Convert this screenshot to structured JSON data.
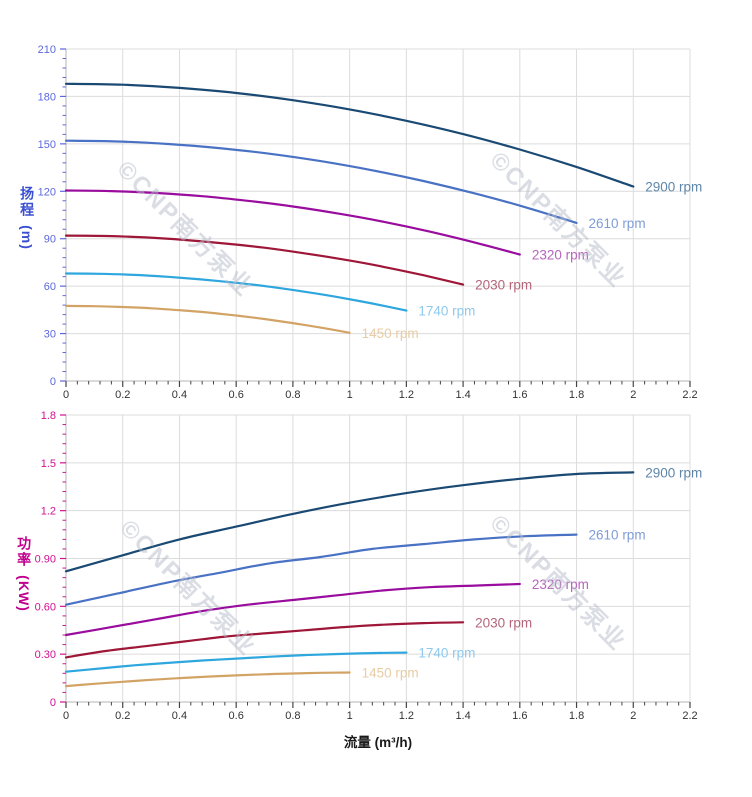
{
  "watermark": {
    "text": "©CNP南方泵业"
  },
  "axes": {
    "flow_label": "流量 (m³/h)",
    "head_title_cn": "扬程",
    "head_unit": "(m)",
    "power_title_cn": "功率",
    "power_unit": "(KW)"
  },
  "colors": {
    "grid": "#dcdcdc",
    "axis_line": "#b5b5b5",
    "x_tick": "#444444",
    "x_tick_label": "#333333",
    "head_tick": "#5c68dd",
    "head_tick_label": "#5c68dd",
    "power_tick": "#d01195",
    "power_tick_label": "#d01195"
  },
  "x_axis": {
    "min": 0,
    "max": 2.2,
    "tick_values": [
      0,
      0.2,
      0.4,
      0.6,
      0.8,
      1,
      1.2,
      1.4,
      1.6,
      1.8,
      2,
      2.2
    ],
    "tick_labels": [
      "0",
      "0.2",
      "0.4",
      "0.6",
      "0.8",
      "1",
      "1.2",
      "1.4",
      "1.6",
      "1.8",
      "2",
      "2.2"
    ],
    "minor_step": 0.04,
    "label": "流量 (m³/h)"
  },
  "chart_data": [
    {
      "type": "line",
      "id": "head",
      "ylabel": "扬程 (m)",
      "ylim": [
        0,
        210
      ],
      "y_tick_values": [
        0,
        30,
        60,
        90,
        120,
        150,
        180,
        210
      ],
      "y_tick_labels": [
        "0",
        "30",
        "60",
        "90",
        "120",
        "150",
        "180",
        "210"
      ],
      "y_minor_step": 6,
      "grid": true,
      "legend_position": "at-line-end",
      "series": [
        {
          "name": "2900 rpm",
          "color": "#1a4a73",
          "label_color": "#5d86a8",
          "x": [
            0,
            0.2,
            0.4,
            0.6,
            0.8,
            1.0,
            1.2,
            1.4,
            1.6,
            1.8,
            2.0
          ],
          "y": [
            188,
            187.4,
            185.4,
            182.2,
            177.6,
            171.8,
            164.6,
            156.2,
            146.4,
            135.4,
            123
          ]
        },
        {
          "name": "2610 rpm",
          "color": "#4a72c4",
          "label_color": "#7f9cd6",
          "x": [
            0,
            0.18,
            0.36,
            0.54,
            0.72,
            0.9,
            1.08,
            1.26,
            1.44,
            1.62,
            1.8
          ],
          "y": [
            152,
            151.5,
            149.9,
            147.3,
            143.7,
            139,
            133.3,
            126.5,
            118.7,
            109.9,
            100
          ]
        },
        {
          "name": "2320 rpm",
          "color": "#990c9e",
          "label_color": "#b765bd",
          "x": [
            0,
            0.16,
            0.32,
            0.48,
            0.64,
            0.8,
            0.96,
            1.12,
            1.28,
            1.44,
            1.6
          ],
          "y": [
            120.5,
            120.1,
            118.9,
            116.9,
            114,
            110.4,
            105.9,
            100.7,
            94.6,
            87.7,
            80
          ]
        },
        {
          "name": "2030 rpm",
          "color": "#9e1638",
          "label_color": "#b56579",
          "x": [
            0,
            0.14,
            0.28,
            0.42,
            0.56,
            0.7,
            0.84,
            0.98,
            1.12,
            1.26,
            1.4
          ],
          "y": [
            92,
            91.7,
            90.8,
            89.2,
            87,
            84.3,
            80.8,
            76.8,
            72.2,
            66.9,
            61
          ]
        },
        {
          "name": "1740 rpm",
          "color": "#2ea6de",
          "label_color": "#8ec9ec",
          "x": [
            0,
            0.12,
            0.24,
            0.36,
            0.48,
            0.6,
            0.72,
            0.84,
            0.96,
            1.08,
            1.2
          ],
          "y": [
            68,
            67.8,
            67.1,
            65.9,
            64.2,
            62.1,
            59.6,
            56.5,
            53,
            49,
            44.5
          ]
        },
        {
          "name": "1450 rpm",
          "color": "#d2a365",
          "label_color": "#e8cca4",
          "x": [
            0,
            0.1,
            0.2,
            0.3,
            0.4,
            0.5,
            0.6,
            0.7,
            0.8,
            0.9,
            1.0
          ],
          "y": [
            47.5,
            47.3,
            46.8,
            46,
            44.8,
            43.3,
            41.4,
            39.2,
            36.6,
            33.7,
            30.5
          ]
        }
      ]
    },
    {
      "type": "line",
      "id": "power",
      "ylabel": "功率 (KW)",
      "xlabel": "流量 (m³/h)",
      "ylim": [
        0,
        1.8
      ],
      "y_tick_values": [
        0,
        0.3,
        0.6,
        0.9,
        1.2,
        1.5,
        1.8
      ],
      "y_tick_labels": [
        "0",
        "0.30",
        "0.60",
        "0.90",
        "1.2",
        "1.5",
        "1.8"
      ],
      "y_minor_step": 0.06,
      "grid": true,
      "legend_position": "at-line-end",
      "series": [
        {
          "name": "2900 rpm",
          "color": "#1a4a73",
          "label_color": "#5d86a8",
          "x": [
            0,
            0.2,
            0.4,
            0.6,
            0.8,
            1.0,
            1.2,
            1.4,
            1.6,
            1.8,
            2.0
          ],
          "y": [
            0.82,
            0.92,
            1.02,
            1.1,
            1.18,
            1.25,
            1.31,
            1.36,
            1.4,
            1.43,
            1.44
          ]
        },
        {
          "name": "2610 rpm",
          "color": "#4a72c4",
          "label_color": "#7f9cd6",
          "x": [
            0,
            0.18,
            0.36,
            0.54,
            0.72,
            0.9,
            1.08,
            1.26,
            1.44,
            1.62,
            1.8
          ],
          "y": [
            0.61,
            0.68,
            0.75,
            0.81,
            0.87,
            0.91,
            0.96,
            0.99,
            1.02,
            1.04,
            1.05
          ]
        },
        {
          "name": "2320 rpm",
          "color": "#990c9e",
          "label_color": "#b765bd",
          "x": [
            0,
            0.16,
            0.32,
            0.48,
            0.64,
            0.8,
            0.96,
            1.12,
            1.28,
            1.44,
            1.6
          ],
          "y": [
            0.42,
            0.47,
            0.52,
            0.57,
            0.61,
            0.64,
            0.67,
            0.7,
            0.72,
            0.73,
            0.74
          ]
        },
        {
          "name": "2030 rpm",
          "color": "#9e1638",
          "label_color": "#b56579",
          "x": [
            0,
            0.14,
            0.28,
            0.42,
            0.56,
            0.7,
            0.84,
            0.98,
            1.12,
            1.26,
            1.4
          ],
          "y": [
            0.28,
            0.32,
            0.35,
            0.38,
            0.41,
            0.43,
            0.45,
            0.47,
            0.485,
            0.495,
            0.5
          ]
        },
        {
          "name": "1740 rpm",
          "color": "#2ea6de",
          "label_color": "#8ec9ec",
          "x": [
            0,
            0.12,
            0.24,
            0.36,
            0.48,
            0.6,
            0.72,
            0.84,
            0.96,
            1.08,
            1.2
          ],
          "y": [
            0.19,
            0.21,
            0.23,
            0.245,
            0.26,
            0.272,
            0.284,
            0.294,
            0.301,
            0.307,
            0.31
          ]
        },
        {
          "name": "1450 rpm",
          "color": "#d2a365",
          "label_color": "#e8cca4",
          "x": [
            0,
            0.1,
            0.2,
            0.3,
            0.4,
            0.5,
            0.6,
            0.7,
            0.8,
            0.9,
            1.0
          ],
          "y": [
            0.1,
            0.114,
            0.127,
            0.139,
            0.15,
            0.159,
            0.167,
            0.174,
            0.179,
            0.183,
            0.185
          ]
        }
      ]
    }
  ]
}
